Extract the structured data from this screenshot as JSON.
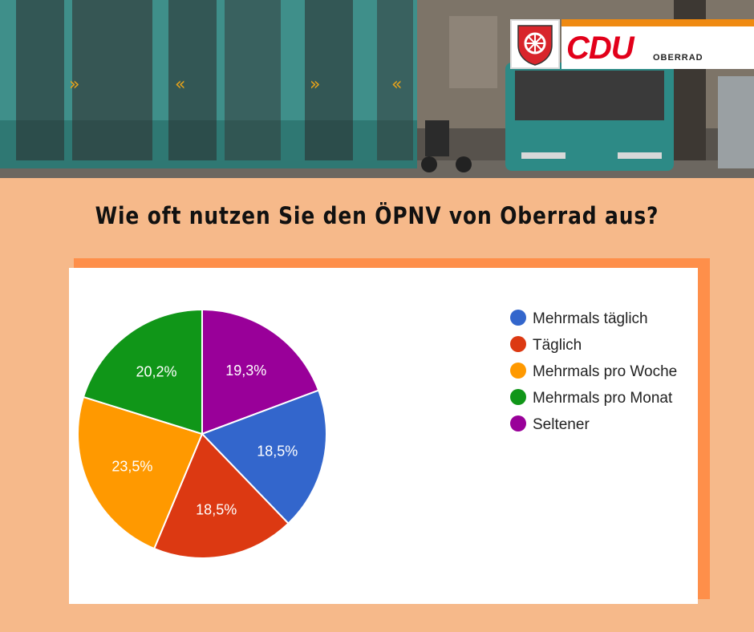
{
  "headline": "Wie oft nutzen Sie den ÖPNV von Oberrad aus?",
  "logo": {
    "party": "CDU",
    "local": "OBERRAD",
    "brand_red": "#e2001a",
    "brand_orange": "#ef8a12"
  },
  "colors": {
    "page_bg": "#f6b98a",
    "card_shadow": "#fe8f4a",
    "card_bg": "#ffffff"
  },
  "chart_data": {
    "type": "pie",
    "title": "",
    "categories": [
      "Mehrmals täglich",
      "Täglich",
      "Mehrmals pro Woche",
      "Mehrmals pro Monat",
      "Seltener"
    ],
    "values": [
      18.5,
      18.5,
      23.5,
      20.2,
      19.3
    ],
    "value_labels": [
      "18,5%",
      "18,5%",
      "23,5%",
      "20,2%",
      "19,3%"
    ],
    "colors": [
      "#3366cc",
      "#dc3912",
      "#ff9900",
      "#109618",
      "#990099"
    ],
    "legend": "right",
    "start_angle_deg": 90,
    "direction": "clockwise"
  }
}
